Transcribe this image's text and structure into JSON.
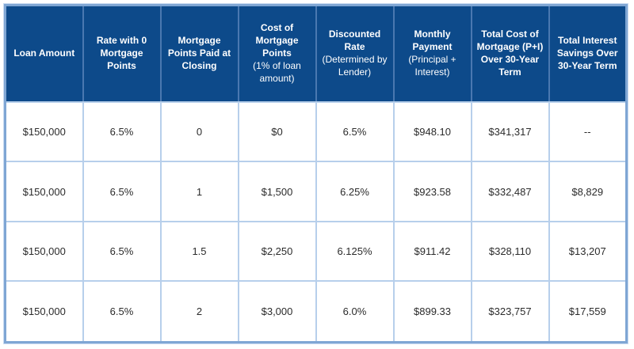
{
  "colors": {
    "header_bg": "#0d4a8a",
    "header_text": "#ffffff",
    "header_divider": "#4a78b0",
    "grid_line": "#b7cfeb",
    "outer_border": "#7fa6d4",
    "body_text": "#2b2b2b",
    "body_bg": "#ffffff"
  },
  "chart_data": {
    "type": "table",
    "columns": [
      {
        "title": "Loan Amount",
        "subtitle": ""
      },
      {
        "title": "Rate with 0 Mortgage Points",
        "subtitle": ""
      },
      {
        "title": "Mortgage Points Paid at Closing",
        "subtitle": ""
      },
      {
        "title": "Cost of Mortgage Points",
        "subtitle": "(1% of loan amount)"
      },
      {
        "title": "Discounted Rate",
        "subtitle": "(Determined by Lender)"
      },
      {
        "title": "Monthly Payment",
        "subtitle": "(Principal + Interest)"
      },
      {
        "title": "Total Cost of Mortgage (P+I) Over 30-Year Term",
        "subtitle": ""
      },
      {
        "title": "Total Interest Savings Over 30-Year Term",
        "subtitle": ""
      }
    ],
    "rows": [
      [
        "$150,000",
        "6.5%",
        "0",
        "$0",
        "6.5%",
        "$948.10",
        "$341,317",
        "--"
      ],
      [
        "$150,000",
        "6.5%",
        "1",
        "$1,500",
        "6.25%",
        "$923.58",
        "$332,487",
        "$8,829"
      ],
      [
        "$150,000",
        "6.5%",
        "1.5",
        "$2,250",
        "6.125%",
        "$911.42",
        "$328,110",
        "$13,207"
      ],
      [
        "$150,000",
        "6.5%",
        "2",
        "$3,000",
        "6.0%",
        "$899.33",
        "$323,757",
        "$17,559"
      ]
    ]
  }
}
